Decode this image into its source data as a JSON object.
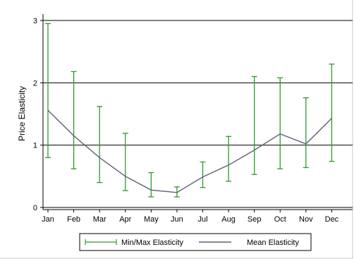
{
  "chart_data": {
    "type": "line",
    "title": "",
    "xlabel": "",
    "ylabel": "Price Elasticity",
    "categories": [
      "Jan",
      "Feb",
      "Mar",
      "Apr",
      "May",
      "Jun",
      "Jul",
      "Aug",
      "Sep",
      "Oct",
      "Nov",
      "Dec"
    ],
    "ylim": [
      0,
      3
    ],
    "yticks": [
      0,
      1,
      2,
      3
    ],
    "grid": "horizontal",
    "legend_position": "bottom",
    "series": [
      {
        "name": "Min/Max Elasticity",
        "type": "errorbar",
        "color": "#2e9a2e",
        "min": [
          0.8,
          0.62,
          0.4,
          0.27,
          0.17,
          0.17,
          0.32,
          0.42,
          0.53,
          0.62,
          0.64,
          0.74
        ],
        "max": [
          2.95,
          2.18,
          1.62,
          1.19,
          0.56,
          0.33,
          0.73,
          1.14,
          2.1,
          2.08,
          1.76,
          2.3
        ]
      },
      {
        "name": "Mean Elasticity",
        "type": "line",
        "color": "#5a6178",
        "values": [
          1.56,
          1.15,
          0.8,
          0.5,
          0.28,
          0.24,
          0.49,
          0.68,
          0.92,
          1.18,
          1.02,
          1.43
        ]
      }
    ]
  }
}
